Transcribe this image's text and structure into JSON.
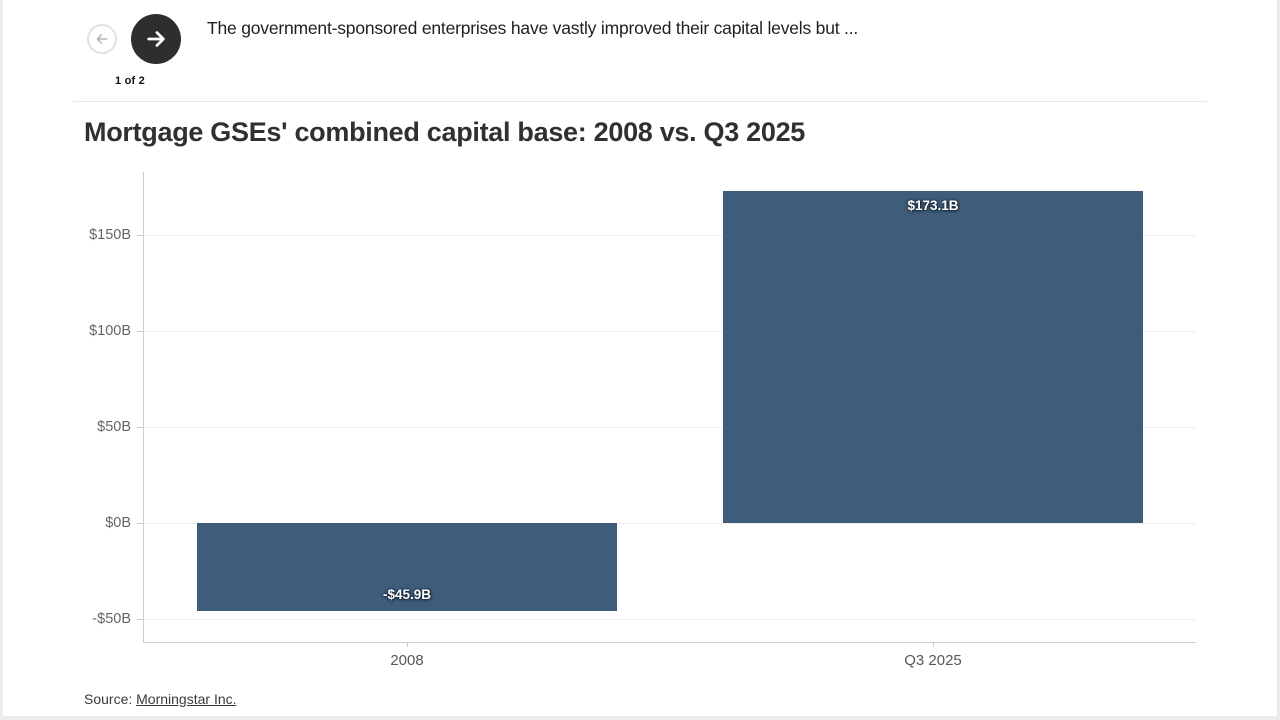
{
  "header": {
    "counter": "1 of 2",
    "headline": "The government-sponsored enterprises have vastly improved their capital levels but ...",
    "icons": {
      "prev": "arrow-left-icon",
      "next": "arrow-right-icon"
    }
  },
  "chart_data": {
    "type": "bar",
    "title": "Mortgage GSEs' combined capital base: 2008 vs. Q3 2025",
    "categories": [
      "2008",
      "Q3 2025"
    ],
    "values": [
      -45.9,
      173.1
    ],
    "value_labels": [
      "-$45.9B",
      "$173.1B"
    ],
    "yticks": [
      {
        "value": 150,
        "label": "$150B"
      },
      {
        "value": 100,
        "label": "$100B"
      },
      {
        "value": 50,
        "label": "$50B"
      },
      {
        "value": 0,
        "label": "$0B"
      },
      {
        "value": -50,
        "label": "-$50B"
      }
    ],
    "ylim": [
      -62,
      183
    ],
    "grid": true,
    "legend": "none",
    "bar_color": "#3f5d7a"
  },
  "source": {
    "prefix": "Source: ",
    "link_label": "Morningstar Inc."
  },
  "colors": {
    "bar": "#3f5d7a",
    "next_button_bg": "#2e2e2e",
    "axis": "#cccccc",
    "gridline": "#efefef"
  }
}
